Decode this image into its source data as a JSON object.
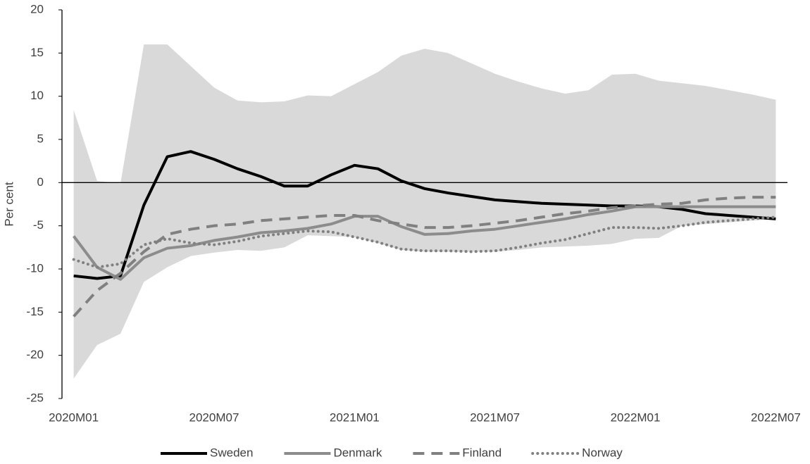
{
  "chart_data": {
    "type": "line",
    "y_label": "Per cent",
    "categories": [
      "2020M01",
      null,
      null,
      null,
      null,
      null,
      "2020M07",
      null,
      null,
      null,
      null,
      null,
      "2021M01",
      null,
      null,
      null,
      null,
      null,
      "2021M07",
      null,
      null,
      null,
      null,
      null,
      "2022M01",
      null,
      null,
      null,
      null,
      null,
      "2022M07"
    ],
    "ylim": [
      -25,
      20
    ],
    "yticks": [
      -25,
      -20,
      -15,
      -10,
      -5,
      0,
      5,
      10,
      15,
      20
    ],
    "zero_line": true,
    "legend": "bottom",
    "band": {
      "color": "#d9d9d9",
      "upper": [
        8.4,
        0.2,
        -0.1,
        16,
        16,
        13.5,
        11,
        9.5,
        9.3,
        9.4,
        10.1,
        10,
        11.4,
        12.8,
        14.7,
        15.5,
        15,
        13.8,
        12.6,
        11.7,
        10.9,
        10.3,
        10.7,
        12.5,
        12.6,
        11.8,
        11.5,
        11.2,
        10.7,
        10.2,
        9.6
      ],
      "lower": [
        -22.7,
        -18.8,
        -17.5,
        -11.5,
        -9.8,
        -8.5,
        -8.1,
        -7.8,
        -7.9,
        -7.5,
        -6.1,
        -6.2,
        -6.3,
        -7,
        -7.8,
        -8,
        -8,
        -8,
        -8,
        -7.8,
        -7.5,
        -7.4,
        -7.3,
        -7.1,
        -6.5,
        -6.4,
        -5,
        -4.8,
        -4.6,
        -4.4,
        -4.2
      ]
    },
    "series": [
      {
        "name": "Sweden",
        "color": "#000000",
        "dash": "solid",
        "values": [
          -10.8,
          -11.1,
          -10.8,
          -2.6,
          3.0,
          3.6,
          2.7,
          1.6,
          0.7,
          -0.4,
          -0.4,
          0.9,
          2.0,
          1.6,
          0.2,
          -0.7,
          -1.2,
          -1.6,
          -2.0,
          -2.2,
          -2.4,
          -2.5,
          -2.6,
          -2.7,
          -2.7,
          -2.8,
          -3.1,
          -3.6,
          -3.8,
          -4.0,
          -4.2
        ]
      },
      {
        "name": "Denmark",
        "color": "#8c8c8c",
        "dash": "solid",
        "values": [
          -6.2,
          -9.8,
          -11.2,
          -8.7,
          -7.6,
          -7.3,
          -6.7,
          -6.3,
          -5.8,
          -5.6,
          -5.3,
          -4.8,
          -3.9,
          -3.9,
          -5.1,
          -6.0,
          -5.9,
          -5.6,
          -5.4,
          -5.0,
          -4.6,
          -4.2,
          -3.7,
          -3.3,
          -2.8,
          -2.8,
          -2.8,
          -2.8,
          -2.8,
          -2.8,
          -2.8
        ]
      },
      {
        "name": "Finland",
        "color": "#808080",
        "dash": "dashed",
        "values": [
          -15.5,
          -12.5,
          -10.5,
          -8.0,
          -6.0,
          -5.4,
          -5.0,
          -4.8,
          -4.4,
          -4.2,
          -4.0,
          -3.8,
          -3.8,
          -4.4,
          -4.8,
          -5.2,
          -5.2,
          -5.0,
          -4.7,
          -4.4,
          -4.0,
          -3.6,
          -3.3,
          -2.9,
          -2.7,
          -2.5,
          -2.4,
          -2.0,
          -1.8,
          -1.7,
          -1.7
        ]
      },
      {
        "name": "Norway",
        "color": "#808080",
        "dash": "dotted",
        "values": [
          -8.9,
          -9.8,
          -9.4,
          -7.2,
          -6.5,
          -7.0,
          -7.2,
          -6.8,
          -6.2,
          -5.9,
          -5.6,
          -5.7,
          -6.3,
          -6.9,
          -7.7,
          -7.9,
          -7.9,
          -8.0,
          -7.9,
          -7.5,
          -7.0,
          -6.6,
          -5.9,
          -5.2,
          -5.2,
          -5.3,
          -5.0,
          -4.6,
          -4.4,
          -4.2,
          -4.0
        ]
      }
    ]
  }
}
